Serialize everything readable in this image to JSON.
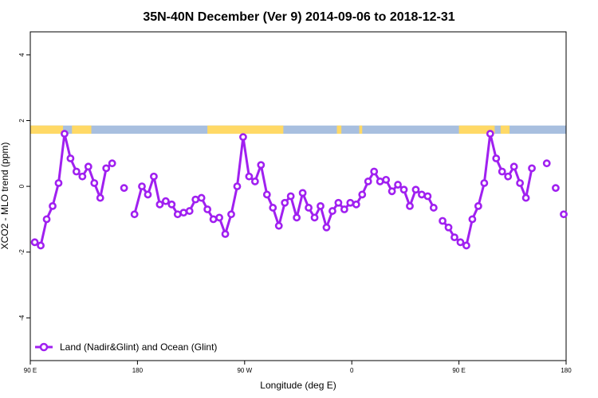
{
  "chart_data": {
    "type": "line",
    "title": "35N-40N December (Ver 9)   2014-09-06 to 2018-12-31",
    "xlabel": "Longitude (deg E)",
    "ylabel": "XCO2 - MLO trend (ppm)",
    "xlim": [
      90,
      450
    ],
    "ylim": [
      -5.3,
      4.7
    ],
    "x_ticks": [
      {
        "value": 90,
        "label": "90 E"
      },
      {
        "value": 162,
        "label": "180"
      },
      {
        "value": 234,
        "label": "90 W"
      },
      {
        "value": 306,
        "label": "0"
      },
      {
        "value": 378,
        "label": "90 E"
      },
      {
        "value": 450,
        "label": "180"
      }
    ],
    "y_ticks": [
      {
        "value": 4,
        "label": "4"
      },
      {
        "value": 2,
        "label": "2"
      },
      {
        "value": 0,
        "label": "0"
      },
      {
        "value": -2,
        "label": "-2"
      },
      {
        "value": -4,
        "label": "-4"
      }
    ],
    "grid": false,
    "legend_position": "bottom-left",
    "series": [
      {
        "name": "Land (Nadir&Glint) and Ocean (Glint)",
        "color": "#a020f0",
        "x": [
          93,
          97,
          101,
          105,
          109,
          113,
          117,
          121,
          125,
          129,
          133,
          137,
          141,
          145,
          153,
          160,
          165,
          169,
          173,
          177,
          181,
          185,
          189,
          193,
          197,
          201,
          205,
          209,
          213,
          217,
          221,
          225,
          229,
          233,
          237,
          241,
          245,
          249,
          253,
          257,
          261,
          265,
          269,
          273,
          277,
          281,
          285,
          289,
          293,
          297,
          301,
          305,
          309,
          313,
          317,
          321,
          325,
          329,
          333,
          337,
          341,
          345,
          349,
          353,
          357,
          361,
          367,
          371,
          375,
          379,
          383,
          387,
          391,
          395,
          399,
          403,
          407,
          411,
          415,
          419,
          423,
          427,
          437,
          443
        ],
        "y": [
          -1.7,
          -1.8,
          -1.0,
          -0.6,
          0.1,
          1.6,
          0.85,
          0.45,
          0.3,
          0.6,
          0.1,
          -0.35,
          0.55,
          0.7,
          -0.05,
          -0.85,
          0.0,
          -0.25,
          0.3,
          -0.55,
          -0.45,
          -0.55,
          -0.85,
          -0.8,
          -0.75,
          -0.4,
          -0.35,
          -0.7,
          -1.0,
          -0.95,
          -1.45,
          -0.85,
          0.0,
          1.5,
          0.3,
          0.15,
          0.65,
          -0.25,
          -0.65,
          -1.2,
          -0.5,
          -0.3,
          -0.95,
          -0.2,
          -0.65,
          -0.95,
          -0.6,
          -1.25,
          -0.75,
          -0.5,
          -0.7,
          -0.5,
          -0.55,
          -0.25,
          0.15,
          0.45,
          0.15,
          0.2,
          -0.15,
          0.05,
          -0.1,
          -0.6,
          -0.1,
          -0.25,
          -0.3,
          -0.65,
          -1.05,
          -1.25,
          -1.55,
          -1.7,
          -1.8,
          -1.0,
          -0.6,
          0.1,
          1.6,
          0.85,
          0.45,
          0.3,
          0.6,
          0.1,
          -0.35,
          0.55,
          0.7,
          -0.05
        ]
      }
    ],
    "segments": [
      [
        0,
        13
      ],
      [
        15,
        65
      ],
      [
        66,
        81
      ]
    ],
    "isolated_points": [
      14,
      82,
      83
    ],
    "extra_point": {
      "x": 450,
      "y": -0.85
    },
    "landmask": {
      "y_range": [
        1.6,
        1.85
      ],
      "colors": {
        "land": "#ffd966",
        "ocean": "#a8bfdf"
      },
      "land_ranges": [
        [
          90,
          112
        ],
        [
          118,
          131
        ],
        [
          209,
          260
        ],
        [
          296,
          299
        ],
        [
          311,
          313
        ],
        [
          378,
          402
        ],
        [
          406,
          412
        ]
      ]
    }
  }
}
